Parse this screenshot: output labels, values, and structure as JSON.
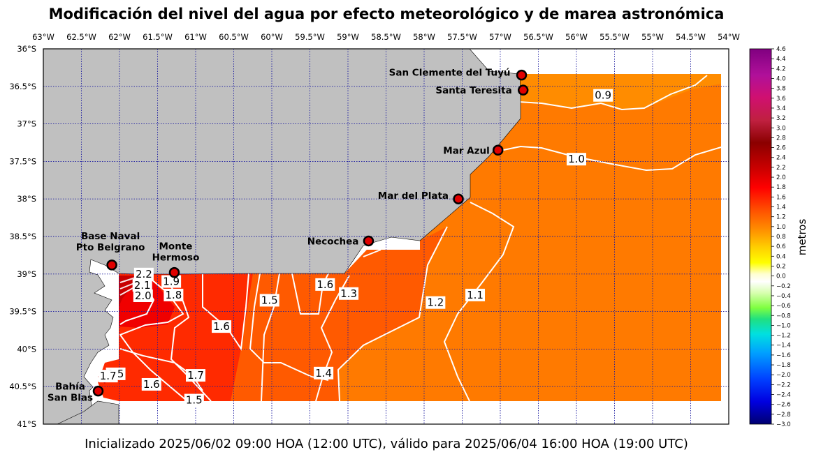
{
  "title": "Modificación del nivel del agua por efecto meteorológico y de marea astronómica",
  "footer": "Inicializado 2025/06/02 09:00 HOA (12:00 UTC), válido para 2025/06/04 16:00 HOA (19:00 UTC)",
  "colorbar_label": "metros",
  "colorbar_range": [
    -3.0,
    4.6
  ],
  "colors": {
    "land": "#c0c0c0",
    "grid": "#1a1aa0",
    "contour": "#ffffff",
    "marker": "#e00000"
  },
  "chart_data": {
    "type": "heatmap",
    "x_range_lon": [
      -63,
      -54
    ],
    "y_range_lat": [
      -41,
      -36
    ],
    "x_ticks": [
      "63°W",
      "62.5°W",
      "62°W",
      "61.5°W",
      "61°W",
      "60.5°W",
      "60°W",
      "59.5°W",
      "59°W",
      "58.5°W",
      "58°W",
      "57.5°W",
      "57°W",
      "56.5°W",
      "56°W",
      "55.5°W",
      "55°W",
      "54.5°W",
      "54°W"
    ],
    "y_ticks": [
      "36°S",
      "36.5°S",
      "37°S",
      "37.5°S",
      "38°S",
      "38.5°S",
      "39°S",
      "39.5°S",
      "40°S",
      "40.5°S",
      "41°S"
    ],
    "colorbar_ticks": [
      "4.6",
      "4.4",
      "4.2",
      "4.0",
      "3.8",
      "3.6",
      "3.4",
      "3.2",
      "3.0",
      "2.8",
      "2.6",
      "2.4",
      "2.2",
      "2.0",
      "1.8",
      "1.6",
      "1.4",
      "1.2",
      "1.0",
      "0.8",
      "0.6",
      "0.4",
      "0.2",
      "0.0",
      "−0.2",
      "−0.4",
      "−0.6",
      "−0.8",
      "−1.0",
      "−1.2",
      "−1.4",
      "−1.6",
      "−1.8",
      "−2.0",
      "−2.2",
      "−2.4",
      "−2.6",
      "−2.8",
      "−3.0"
    ],
    "stations": [
      {
        "name": "San Clemente del Tuyú",
        "lon": -56.72,
        "lat": -36.35
      },
      {
        "name": "Santa Teresita",
        "lon": -56.7,
        "lat": -36.55
      },
      {
        "name": "Mar Azul",
        "lon": -57.03,
        "lat": -37.35
      },
      {
        "name": "Mar del Plata",
        "lon": -57.55,
        "lat": -38.0
      },
      {
        "name": "Necochea",
        "lon": -58.73,
        "lat": -38.56
      },
      {
        "name": "Base Naval Pto Belgrano",
        "label_lines": [
          "Base Naval",
          "Pto Belgrano"
        ],
        "lon": -62.1,
        "lat": -38.88
      },
      {
        "name": "Monte Hermoso",
        "label_lines": [
          "Monte",
          "Hermoso"
        ],
        "lon": -61.28,
        "lat": -38.98
      },
      {
        "name": "Bahía San Blas",
        "label_lines": [
          "Bahía",
          "San Blas"
        ],
        "lon": -62.28,
        "lat": -40.56
      }
    ],
    "contour_labels": [
      {
        "text": "0.9",
        "lon": -55.65,
        "lat": -36.62
      },
      {
        "text": "1.0",
        "lon": -56.0,
        "lat": -37.47
      },
      {
        "text": "1.1",
        "lon": -57.33,
        "lat": -39.28
      },
      {
        "text": "1.2",
        "lon": -57.85,
        "lat": -39.38
      },
      {
        "text": "1.3",
        "lon": -58.99,
        "lat": -39.26
      },
      {
        "text": "1.4",
        "lon": -59.32,
        "lat": -40.32
      },
      {
        "text": "1.5",
        "lon": -60.03,
        "lat": -39.35
      },
      {
        "text": "1.6",
        "lon": -59.3,
        "lat": -39.14
      },
      {
        "text": "1.6",
        "lon": -60.66,
        "lat": -39.7
      },
      {
        "text": "1.7",
        "lon": -61.0,
        "lat": -40.35
      },
      {
        "text": "1.8",
        "lon": -61.29,
        "lat": -39.28
      },
      {
        "text": "1.9",
        "lon": -61.32,
        "lat": -39.1
      },
      {
        "text": "2.0",
        "lon": -61.69,
        "lat": -39.29
      },
      {
        "text": "2.1",
        "lon": -61.7,
        "lat": -39.15
      },
      {
        "text": "2.2",
        "lon": -61.68,
        "lat": -39.0
      },
      {
        "text": "1.5",
        "lon": -61.02,
        "lat": -40.68
      },
      {
        "text": "1.6",
        "lon": -61.58,
        "lat": -40.47
      },
      {
        "text": "1.5",
        "lon": -62.05,
        "lat": -40.33
      },
      {
        "text": "1.7",
        "lon": -62.15,
        "lat": -40.36
      }
    ]
  }
}
